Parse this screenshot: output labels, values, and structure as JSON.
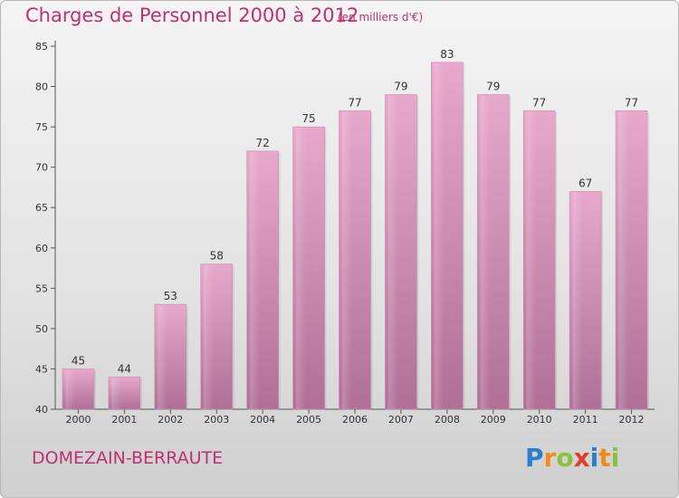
{
  "header": {
    "title": "Charges de Personnel 2000 à 2012",
    "unit_note": "(en milliers d'€)"
  },
  "footer": {
    "city": "DOMEZAIN-BERRAUTE",
    "logo_letters": [
      "P",
      "r",
      "o",
      "x",
      "i",
      "t",
      "i"
    ],
    "logo_colors": [
      "#2a7fd0",
      "#f08a1c",
      "#8bc13a",
      "#e23b2e",
      "#2a7fd0",
      "#f08a1c",
      "#8bc13a"
    ]
  },
  "colors": {
    "accent": "#c03070",
    "bar_top": "#e8a8cc",
    "bar_bottom": "#b06f96",
    "axis": "#555555",
    "grid": "#d0d0d0"
  },
  "chart_data": {
    "type": "bar",
    "title": "Charges de Personnel 2000 à 2012",
    "subtitle": "(en milliers d'€)",
    "categories": [
      "2000",
      "2001",
      "2002",
      "2003",
      "2004",
      "2005",
      "2006",
      "2007",
      "2008",
      "2009",
      "2010",
      "2011",
      "2012"
    ],
    "values": [
      45,
      44,
      53,
      58,
      72,
      75,
      77,
      79,
      83,
      79,
      77,
      67,
      77
    ],
    "ylim": [
      40,
      85
    ],
    "yticks": [
      40,
      45,
      50,
      55,
      60,
      65,
      70,
      75,
      80,
      85
    ],
    "grid": false,
    "data_labels": true
  }
}
